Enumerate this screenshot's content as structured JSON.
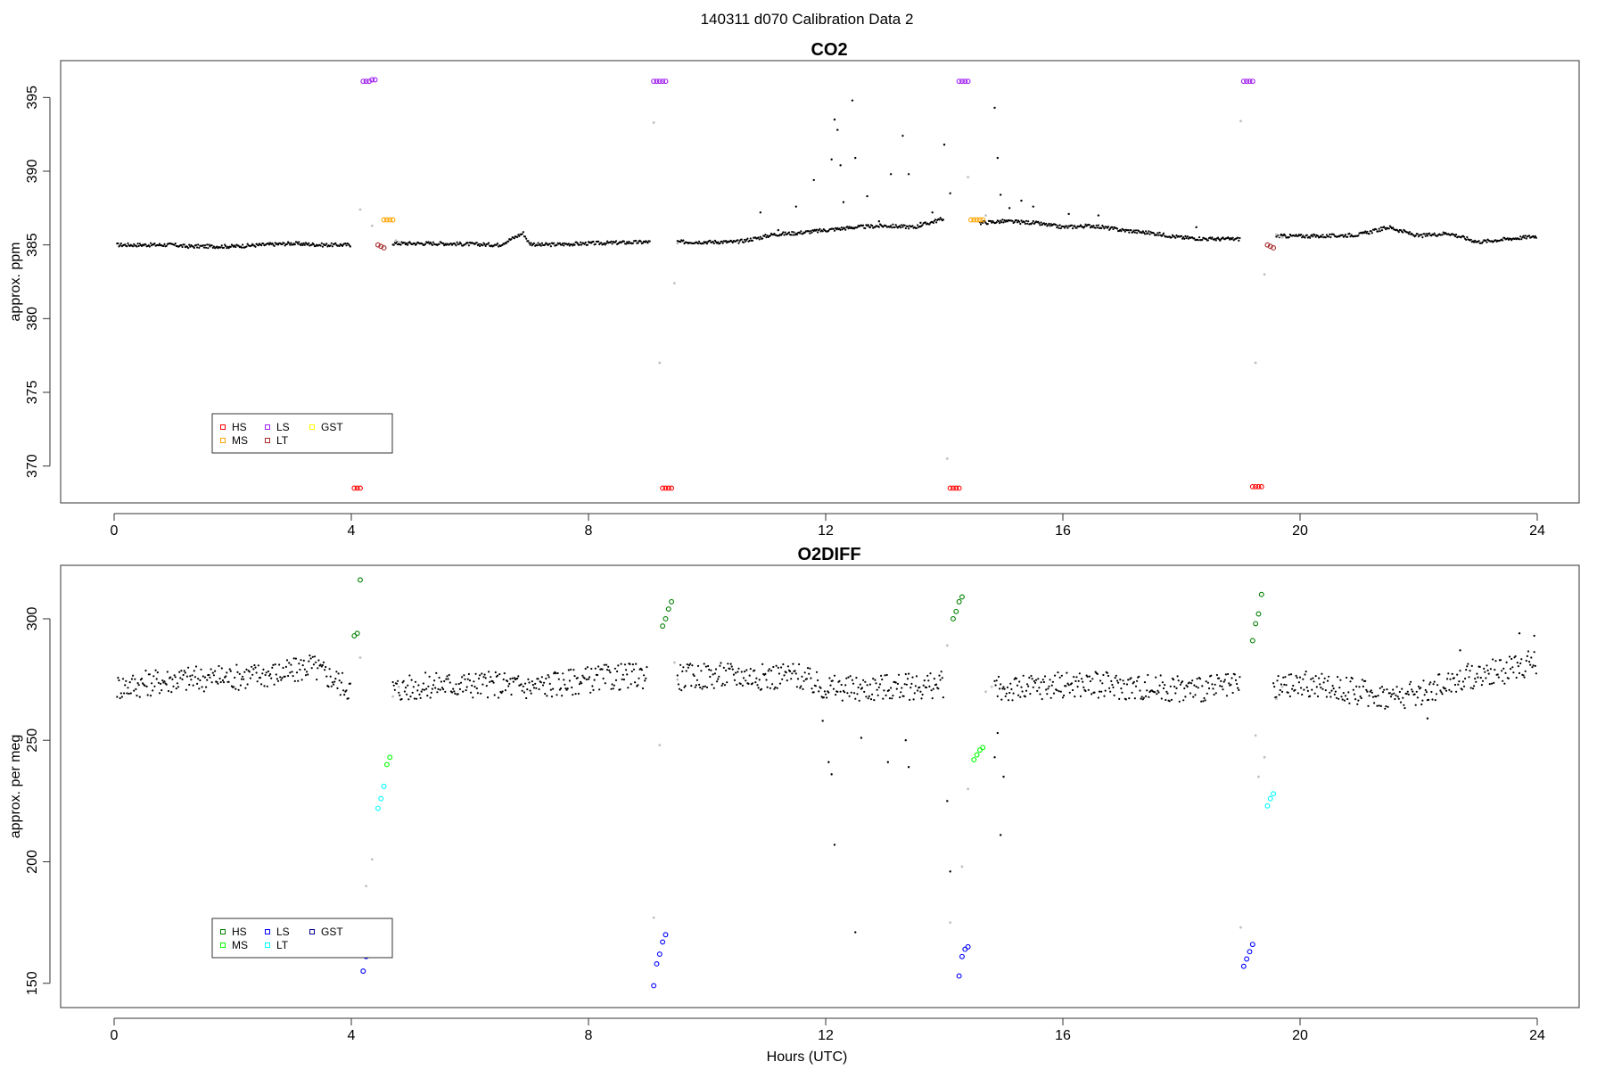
{
  "figure_title": "140311   d070   Calibration Data 2",
  "xlabel": "Hours (UTC)",
  "chart_data": [
    {
      "type": "scatter",
      "title": "CO2",
      "xlabel": "",
      "ylabel": "approx. ppm",
      "xlim": [
        0,
        24
      ],
      "ylim": [
        367.5,
        397.5
      ],
      "xticks": [
        0,
        4,
        8,
        12,
        16,
        20,
        24
      ],
      "yticks": [
        370,
        375,
        380,
        385,
        390,
        395
      ],
      "legend": {
        "position": "bottom-left",
        "entries": [
          {
            "label": "HS",
            "color": "#ff0000"
          },
          {
            "label": "MS",
            "color": "#ffa500"
          },
          {
            "label": "LS",
            "color": "#a020f0"
          },
          {
            "label": "LT",
            "color": "#a52a2a"
          },
          {
            "label": "GST",
            "color": "#ffff00"
          }
        ]
      },
      "background_trace": {
        "color": "#000000",
        "segments": [
          {
            "x": [
              0.05,
              1.0,
              1.2,
              2.0,
              3.0,
              3.5,
              4.0
            ],
            "y": [
              385.0,
              385.0,
              384.9,
              384.9,
              385.1,
              385.0,
              385.0
            ]
          },
          {
            "x": [
              4.7,
              5.5,
              6.5,
              6.9,
              7.0,
              7.2,
              8.0,
              9.05
            ],
            "y": [
              385.1,
              385.1,
              385.0,
              385.8,
              385.1,
              385.0,
              385.1,
              385.2
            ]
          },
          {
            "x": [
              9.5,
              10.5,
              10.9,
              11.1,
              11.5,
              12.0,
              12.5,
              13.0,
              13.5,
              14.0
            ],
            "y": [
              385.2,
              385.2,
              385.5,
              385.7,
              385.8,
              386.0,
              386.2,
              386.3,
              386.2,
              386.8
            ]
          },
          {
            "x": [
              14.6,
              15.0,
              15.5,
              16.0,
              16.5,
              17.0,
              17.5,
              18.0,
              18.5,
              19.0
            ],
            "y": [
              386.5,
              386.6,
              386.5,
              386.2,
              386.3,
              386.0,
              385.8,
              385.5,
              385.4,
              385.4
            ]
          },
          {
            "x": [
              19.6,
              20.5,
              21.0,
              21.5,
              22.0,
              22.5,
              23.0,
              23.5,
              24.0
            ],
            "y": [
              385.6,
              385.6,
              385.7,
              386.2,
              385.6,
              385.8,
              385.2,
              385.4,
              385.6
            ]
          }
        ],
        "scatter_x": [
          10.9,
          11.2,
          11.5,
          11.8,
          12.1,
          12.15,
          12.2,
          12.25,
          12.3,
          12.45,
          12.5,
          12.7,
          12.9,
          13.1,
          13.3,
          13.4,
          13.6,
          13.8,
          14.0,
          14.1,
          14.85,
          14.9,
          14.95,
          15.1,
          15.3,
          15.5,
          16.1,
          16.6,
          18.25
        ],
        "scatter_y": [
          387.2,
          386.0,
          387.6,
          389.4,
          390.8,
          393.5,
          392.8,
          390.4,
          387.9,
          394.8,
          390.9,
          388.3,
          386.6,
          389.8,
          392.4,
          389.8,
          386.5,
          387.2,
          391.8,
          388.5,
          394.3,
          390.9,
          388.4,
          387.5,
          388.0,
          387.6,
          387.1,
          387.0,
          386.2
        ]
      },
      "series": [
        {
          "name": "HS",
          "color": "#ff0000",
          "x": [
            4.05,
            4.1,
            4.15,
            9.25,
            9.3,
            9.35,
            9.4,
            14.1,
            14.15,
            14.2,
            14.25,
            19.2,
            19.25,
            19.3,
            19.35
          ],
          "y": [
            368.5,
            368.5,
            368.5,
            368.5,
            368.5,
            368.5,
            368.5,
            368.5,
            368.5,
            368.5,
            368.5,
            368.6,
            368.6,
            368.6,
            368.6
          ]
        },
        {
          "name": "MS",
          "color": "#ffa500",
          "x": [
            4.55,
            4.6,
            4.65,
            4.7,
            14.45,
            14.5,
            14.55,
            14.6,
            14.65
          ],
          "y": [
            386.7,
            386.7,
            386.7,
            386.7,
            386.7,
            386.7,
            386.7,
            386.7,
            386.7
          ]
        },
        {
          "name": "LS",
          "color": "#a020f0",
          "x": [
            4.2,
            4.25,
            4.3,
            4.35,
            4.4,
            9.1,
            9.15,
            9.2,
            9.25,
            9.3,
            14.25,
            14.3,
            14.35,
            14.4,
            19.05,
            19.1,
            19.15,
            19.2
          ],
          "y": [
            396.1,
            396.1,
            396.1,
            396.2,
            396.2,
            396.1,
            396.1,
            396.1,
            396.1,
            396.1,
            396.1,
            396.1,
            396.1,
            396.1,
            396.1,
            396.1,
            396.1,
            396.1
          ]
        },
        {
          "name": "LT",
          "color": "#a52a2a",
          "x": [
            4.45,
            4.5,
            4.55,
            19.45,
            19.5,
            19.55
          ],
          "y": [
            385.0,
            384.9,
            384.8,
            385.0,
            384.9,
            384.8
          ]
        }
      ],
      "transition_points": {
        "color": "#c0c0c0",
        "x": [
          4.15,
          4.35,
          4.75,
          4.8,
          9.1,
          9.2,
          9.45,
          9.5,
          14.05,
          14.4,
          14.7,
          19.0,
          19.25,
          19.4,
          19.6,
          19.65,
          19.7
        ],
        "y": [
          387.4,
          386.3,
          385.3,
          385.2,
          393.3,
          377.0,
          382.4,
          385.1,
          370.5,
          389.6,
          387.0,
          393.4,
          377.0,
          383.0,
          385.7,
          385.6,
          385.5
        ]
      }
    },
    {
      "type": "scatter",
      "title": "O2DIFF",
      "xlabel": "Hours (UTC)",
      "ylabel": "approx. per meg",
      "xlim": [
        0,
        24
      ],
      "ylim": [
        140,
        322
      ],
      "xticks": [
        0,
        4,
        8,
        12,
        16,
        20,
        24
      ],
      "yticks": [
        150,
        200,
        250,
        300
      ],
      "legend": {
        "position": "bottom-left",
        "entries": [
          {
            "label": "HS",
            "color": "#008000"
          },
          {
            "label": "MS",
            "color": "#00ff00"
          },
          {
            "label": "LS",
            "color": "#0000ff"
          },
          {
            "label": "LT",
            "color": "#00ffff"
          },
          {
            "label": "GST",
            "color": "#00008b"
          }
        ]
      },
      "background_trace": {
        "color": "#000000",
        "segments": [
          {
            "x": [
              0.05,
              1.0,
              2.0,
              3.0,
              3.3,
              4.0
            ],
            "y": [
              272,
              275,
              276,
              278,
              281,
              271
            ]
          },
          {
            "x": [
              4.7,
              5.5,
              6.5,
              7.0,
              8.0,
              9.0
            ],
            "y": [
              271,
              273,
              273,
              272,
              275,
              277
            ]
          },
          {
            "x": [
              9.5,
              10.5,
              11.0,
              11.5,
              11.9,
              12.5,
              13.0,
              13.5,
              14.0
            ],
            "y": [
              276,
              277,
              276,
              277,
              272,
              271,
              272,
              272,
              273
            ]
          },
          {
            "x": [
              14.85,
              15.3,
              16.0,
              16.5,
              17.0,
              18.0,
              19.0
            ],
            "y": [
              271,
              271,
              273,
              273,
              272,
              271,
              272
            ]
          },
          {
            "x": [
              19.55,
              20.0,
              20.5,
              21.0,
              21.5,
              22.0,
              22.5,
              23.0,
              23.5,
              24.0
            ],
            "y": [
              271,
              273,
              272,
              270,
              268,
              269,
              274,
              277,
              279,
              283
            ]
          }
        ],
        "scatter_x": [
          11.95,
          12.05,
          12.1,
          12.15,
          12.5,
          12.6,
          13.05,
          13.35,
          13.4,
          14.05,
          14.1,
          14.85,
          14.9,
          14.95,
          15.0,
          22.15,
          22.7,
          23.7,
          23.95
        ],
        "scatter_y": [
          258,
          241,
          236,
          207,
          171,
          251,
          241,
          250,
          239,
          225,
          196,
          243,
          253,
          211,
          235,
          259,
          287,
          294,
          293
        ]
      },
      "series": [
        {
          "name": "HS",
          "color": "#008000",
          "x": [
            4.05,
            4.1,
            4.15,
            9.25,
            9.3,
            9.35,
            9.4,
            14.15,
            14.2,
            14.25,
            14.3,
            19.2,
            19.25,
            19.3,
            19.35
          ],
          "y": [
            293,
            294,
            316,
            297,
            300,
            304,
            307,
            300,
            303,
            307,
            309,
            291,
            298,
            302,
            310
          ]
        },
        {
          "name": "MS",
          "color": "#00ff00",
          "x": [
            4.6,
            4.65,
            14.5,
            14.55,
            14.6,
            14.65
          ],
          "y": [
            240,
            243,
            242,
            244,
            246,
            247
          ]
        },
        {
          "name": "LS",
          "color": "#0000ff",
          "x": [
            4.2,
            4.25,
            9.1,
            9.15,
            9.2,
            9.25,
            9.3,
            14.25,
            14.3,
            14.35,
            14.4,
            19.05,
            19.1,
            19.15,
            19.2
          ],
          "y": [
            155,
            161,
            149,
            158,
            162,
            167,
            170,
            153,
            161,
            164,
            165,
            157,
            160,
            163,
            166
          ]
        },
        {
          "name": "LT",
          "color": "#00ffff",
          "x": [
            4.45,
            4.5,
            4.55,
            19.45,
            19.5,
            19.55
          ],
          "y": [
            222,
            226,
            231,
            223,
            226,
            228
          ]
        }
      ],
      "transition_points": {
        "color": "#c0c0c0",
        "x": [
          4.15,
          4.25,
          4.35,
          4.7,
          4.8,
          9.1,
          9.2,
          9.45,
          9.5,
          14.05,
          14.1,
          14.3,
          14.4,
          14.7,
          14.8,
          19.0,
          19.25,
          19.3,
          19.4,
          19.6,
          19.7
        ],
        "y": [
          284,
          190,
          201,
          268,
          272,
          177,
          248,
          282,
          275,
          289,
          175,
          198,
          230,
          270,
          272,
          173,
          252,
          235,
          243,
          267,
          272
        ]
      }
    }
  ]
}
